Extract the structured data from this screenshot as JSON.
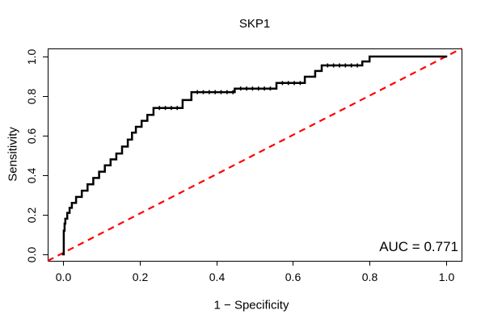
{
  "title": "SKP1",
  "axes": {
    "x_label": "1 − Specificity",
    "y_label": "Sensitivity",
    "x_ticks": [
      "0.0",
      "0.2",
      "0.4",
      "0.6",
      "0.8",
      "1.0"
    ],
    "y_ticks": [
      "0.0",
      "0.2",
      "0.4",
      "0.6",
      "0.8",
      "1.0"
    ]
  },
  "annotation": {
    "auc_label": "AUC = 0.771"
  },
  "colors": {
    "roc_curve": "#000000",
    "diagonal": "#ff0000",
    "axis": "#000000",
    "background": "#ffffff"
  },
  "chart_data": {
    "type": "line",
    "subtype": "roc-step-curve",
    "title": "SKP1",
    "xlabel": "1 − Specificity",
    "ylabel": "Sensitivity",
    "xlim": [
      0,
      1
    ],
    "ylim": [
      0,
      1
    ],
    "x_tick_values": [
      0,
      0.2,
      0.4,
      0.6,
      0.8,
      1.0
    ],
    "y_tick_values": [
      0,
      0.2,
      0.4,
      0.6,
      0.8,
      1.0
    ],
    "grid": false,
    "auc": 0.771,
    "series": [
      {
        "name": "ROC curve",
        "style": "step-solid",
        "points": [
          [
            0.0,
            0.0
          ],
          [
            0.002,
            0.0
          ],
          [
            0.002,
            0.12
          ],
          [
            0.004,
            0.12
          ],
          [
            0.004,
            0.155
          ],
          [
            0.006,
            0.155
          ],
          [
            0.006,
            0.18
          ],
          [
            0.011,
            0.18
          ],
          [
            0.011,
            0.21
          ],
          [
            0.017,
            0.21
          ],
          [
            0.017,
            0.235
          ],
          [
            0.023,
            0.235
          ],
          [
            0.023,
            0.26
          ],
          [
            0.034,
            0.26
          ],
          [
            0.034,
            0.29
          ],
          [
            0.049,
            0.29
          ],
          [
            0.049,
            0.322
          ],
          [
            0.064,
            0.322
          ],
          [
            0.064,
            0.354
          ],
          [
            0.079,
            0.354
          ],
          [
            0.079,
            0.386
          ],
          [
            0.094,
            0.386
          ],
          [
            0.094,
            0.418
          ],
          [
            0.109,
            0.418
          ],
          [
            0.109,
            0.45
          ],
          [
            0.124,
            0.45
          ],
          [
            0.124,
            0.48
          ],
          [
            0.139,
            0.48
          ],
          [
            0.139,
            0.51
          ],
          [
            0.154,
            0.51
          ],
          [
            0.154,
            0.545
          ],
          [
            0.169,
            0.545
          ],
          [
            0.169,
            0.58
          ],
          [
            0.18,
            0.58
          ],
          [
            0.18,
            0.615
          ],
          [
            0.19,
            0.615
          ],
          [
            0.19,
            0.645
          ],
          [
            0.205,
            0.645
          ],
          [
            0.205,
            0.675
          ],
          [
            0.22,
            0.675
          ],
          [
            0.22,
            0.705
          ],
          [
            0.236,
            0.705
          ],
          [
            0.236,
            0.74
          ],
          [
            0.312,
            0.74
          ],
          [
            0.312,
            0.78
          ],
          [
            0.335,
            0.78
          ],
          [
            0.335,
            0.82
          ],
          [
            0.448,
            0.82
          ],
          [
            0.448,
            0.838
          ],
          [
            0.557,
            0.838
          ],
          [
            0.557,
            0.866
          ],
          [
            0.631,
            0.866
          ],
          [
            0.631,
            0.898
          ],
          [
            0.658,
            0.898
          ],
          [
            0.658,
            0.927
          ],
          [
            0.675,
            0.927
          ],
          [
            0.675,
            0.955
          ],
          [
            0.781,
            0.955
          ],
          [
            0.781,
            0.975
          ],
          [
            0.8,
            0.975
          ],
          [
            0.8,
            1.0
          ],
          [
            1.0,
            1.0
          ]
        ]
      },
      {
        "name": "Chance diagonal",
        "style": "dashed",
        "points": [
          [
            -0.04,
            -0.04
          ],
          [
            1.04,
            1.04
          ]
        ]
      }
    ]
  }
}
